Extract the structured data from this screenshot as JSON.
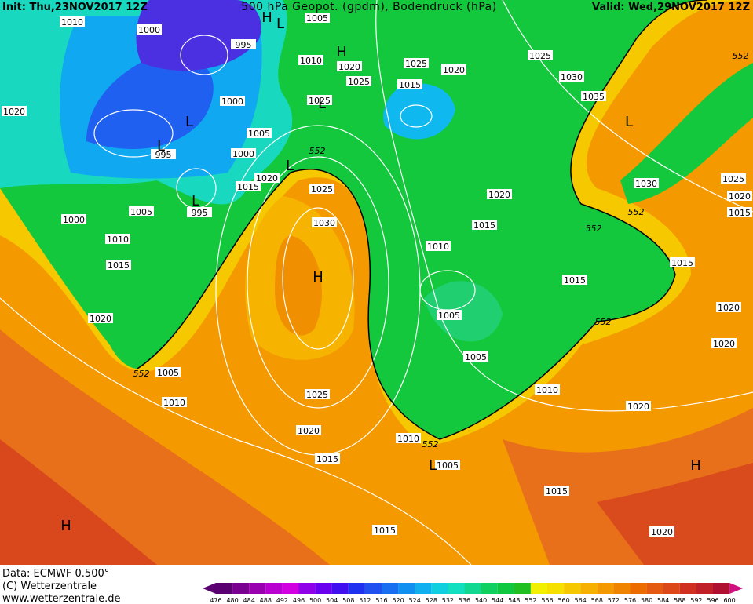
{
  "header": {
    "init": "Init: Thu,23NOV2017 12Z",
    "title": "500 hPa Geopot. (gpdm), Bodendruck (hPa)",
    "valid": "Valid: Wed,29NOV2017 12Z"
  },
  "footer": {
    "data": "Data: ECMWF  0.500°",
    "copyright": "(C) Wetterzentrale",
    "url": "www.wetterzentrale.de"
  },
  "colorbar": {
    "ticks": [
      "476",
      "480",
      "484",
      "488",
      "492",
      "496",
      "500",
      "504",
      "508",
      "512",
      "516",
      "520",
      "524",
      "528",
      "532",
      "536",
      "540",
      "544",
      "548",
      "552",
      "556",
      "560",
      "564",
      "568",
      "572",
      "576",
      "580",
      "584",
      "588",
      "592",
      "596",
      "600"
    ]
  },
  "map": {
    "isobar_labels": [
      "1010",
      "1000",
      "995",
      "1005",
      "1010",
      "1020",
      "1025",
      "1020",
      "1025",
      "1030",
      "552",
      "1020",
      "1000",
      "1025",
      "1015",
      "1025",
      "1035",
      "1005",
      "995",
      "1000",
      "552",
      "1020",
      "1015",
      "1025",
      "1030",
      "1025",
      "1020",
      "995",
      "1005",
      "1000",
      "1030",
      "1020",
      "1015",
      "552",
      "1015",
      "552",
      "1010",
      "1010",
      "1015",
      "1015",
      "1015",
      "1020",
      "1005",
      "552",
      "1020",
      "1020",
      "1005",
      "552",
      "1005",
      "1010",
      "1025",
      "1010",
      "1020",
      "1020",
      "1010",
      "552",
      "1015",
      "1005",
      "1015",
      "1015",
      "1020"
    ],
    "centers": [
      "H",
      "L",
      "H",
      "L",
      "H",
      "H",
      "H",
      "L",
      "L",
      "L",
      "L",
      "L",
      "L"
    ]
  }
}
